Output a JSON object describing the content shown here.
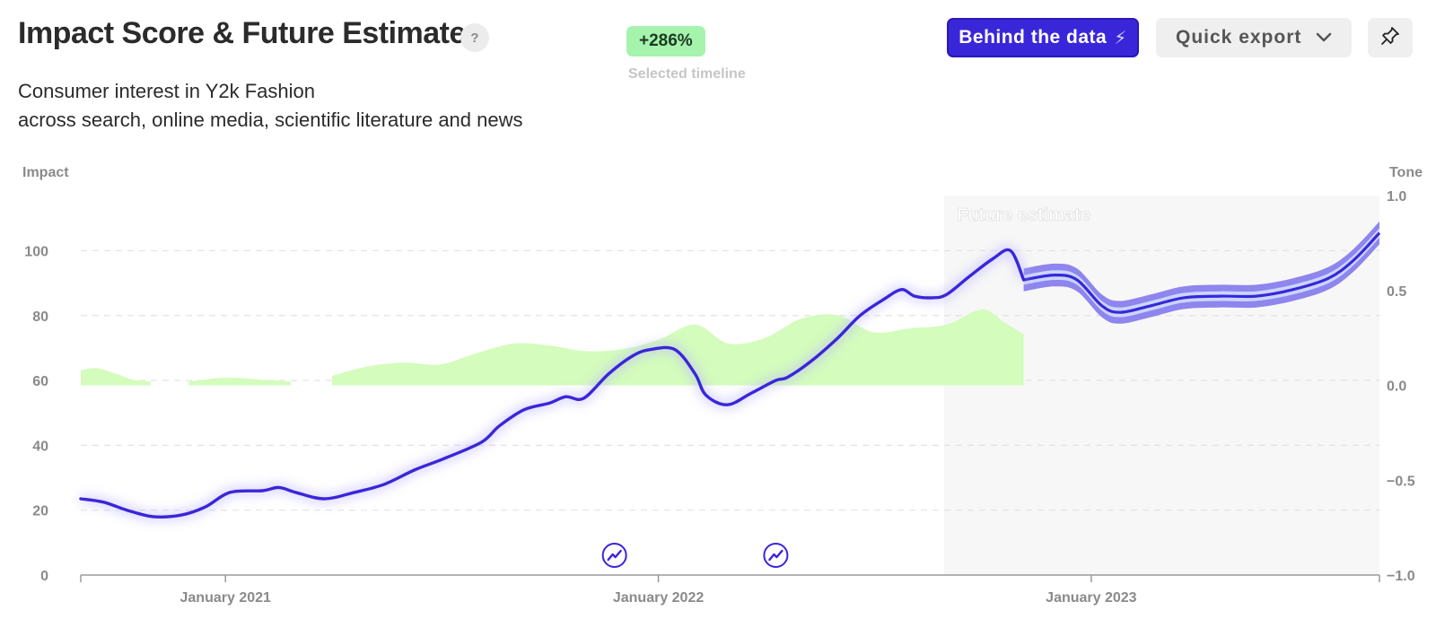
{
  "header": {
    "title": "Impact Score & Future Estimate",
    "help_label": "?",
    "growth_badge": "+286%",
    "growth_caption": "Selected timeline",
    "subtitle_line1": "Consumer interest in Y2k Fashion",
    "subtitle_line2": "across search, online media, scientific literature and news",
    "behind_data_label": "Behind the data",
    "quick_export_label": "Quick export"
  },
  "icons": {
    "help": "question-icon",
    "bolt": "lightning-icon",
    "dropdown": "chevron-down-icon",
    "pin": "pin-icon",
    "event_marker": "trend-up-icon"
  },
  "colors": {
    "impact_line": "#3a26d9",
    "forecast_band_outer": "#8e85ee",
    "forecast_band_inner": "#c9d6ff",
    "tone_area": "#d4fcbc",
    "forecast_region": "#f7f7f7",
    "badge": "#a5f3ad"
  },
  "chart_data": {
    "type": "line",
    "left_axis_label": "Impact",
    "right_axis_label": "Tone",
    "forecast_label": "Future estimate",
    "x_ticks": [
      {
        "date": "2021-01-01",
        "label": "January 2021"
      },
      {
        "date": "2022-01-01",
        "label": "January 2022"
      },
      {
        "date": "2023-01-01",
        "label": "January 2023"
      }
    ],
    "x_range": [
      "2020-09-01",
      "2023-09-01"
    ],
    "y_left_range": [
      0,
      117
    ],
    "y_left_ticks": [
      0,
      20,
      40,
      60,
      80,
      100
    ],
    "y_right_range": [
      -1.0,
      1.0
    ],
    "y_right_ticks": [
      {
        "value": 1.0,
        "label": "1.0"
      },
      {
        "value": 0.5,
        "label": "0.5"
      },
      {
        "value": 0.0,
        "label": "0.0"
      },
      {
        "value": -0.5,
        "label": "−0.5"
      },
      {
        "value": -1.0,
        "label": "−1.0"
      }
    ],
    "grid": "dashed horizontal",
    "forecast_start": "2022-08-30",
    "series": [
      {
        "name": "Impact",
        "axis": "left",
        "points": [
          [
            "2020-09-01",
            23.5
          ],
          [
            "2020-09-20",
            22.5
          ],
          [
            "2020-10-10",
            20
          ],
          [
            "2020-11-01",
            18
          ],
          [
            "2020-11-25",
            18.5
          ],
          [
            "2020-12-15",
            21
          ],
          [
            "2021-01-05",
            25.5
          ],
          [
            "2021-02-01",
            26
          ],
          [
            "2021-02-15",
            27
          ],
          [
            "2021-03-01",
            25.5
          ],
          [
            "2021-03-25",
            23.5
          ],
          [
            "2021-04-20",
            25.5
          ],
          [
            "2021-05-15",
            28
          ],
          [
            "2021-06-10",
            32.5
          ],
          [
            "2021-07-05",
            36
          ],
          [
            "2021-08-05",
            41
          ],
          [
            "2021-08-20",
            46
          ],
          [
            "2021-09-10",
            51
          ],
          [
            "2021-10-01",
            53
          ],
          [
            "2021-10-15",
            55
          ],
          [
            "2021-10-30",
            54.5
          ],
          [
            "2021-11-20",
            62
          ],
          [
            "2021-12-10",
            67.5
          ],
          [
            "2021-12-25",
            69.5
          ],
          [
            "2022-01-15",
            69.5
          ],
          [
            "2022-02-01",
            62
          ],
          [
            "2022-02-10",
            55.5
          ],
          [
            "2022-02-28",
            52.5
          ],
          [
            "2022-03-20",
            56
          ],
          [
            "2022-04-10",
            60
          ],
          [
            "2022-04-20",
            61
          ],
          [
            "2022-05-10",
            66
          ],
          [
            "2022-06-01",
            73
          ],
          [
            "2022-06-20",
            80
          ],
          [
            "2022-07-10",
            85
          ],
          [
            "2022-07-25",
            88
          ],
          [
            "2022-08-05",
            86
          ],
          [
            "2022-08-20",
            85.5
          ],
          [
            "2022-09-01",
            86.5
          ],
          [
            "2022-09-20",
            92
          ],
          [
            "2022-10-10",
            97.5
          ],
          [
            "2022-10-25",
            100
          ],
          [
            "2022-11-05",
            91
          ]
        ]
      },
      {
        "name": "Future estimate",
        "axis": "left",
        "points": [
          [
            "2022-11-05",
            91
          ],
          [
            "2022-12-01",
            92.5
          ],
          [
            "2022-12-20",
            91
          ],
          [
            "2023-01-10",
            83
          ],
          [
            "2023-01-25",
            81
          ],
          [
            "2023-02-20",
            83
          ],
          [
            "2023-03-20",
            85.5
          ],
          [
            "2023-04-20",
            86
          ],
          [
            "2023-05-20",
            86
          ],
          [
            "2023-06-20",
            88
          ],
          [
            "2023-07-20",
            91.5
          ],
          [
            "2023-08-10",
            97
          ],
          [
            "2023-09-01",
            105.5
          ]
        ],
        "band_outer": 3.5,
        "band_inner": 1.5
      },
      {
        "name": "Tone",
        "axis": "right",
        "segments": [
          [
            [
              "2020-09-01",
              0.08
            ],
            [
              "2020-09-15",
              0.09
            ],
            [
              "2020-10-01",
              0.06
            ],
            [
              "2020-10-15",
              0.03
            ],
            [
              "2020-10-30",
              0.02
            ]
          ],
          [
            [
              "2020-12-01",
              0.02
            ],
            [
              "2021-01-01",
              0.04
            ],
            [
              "2021-02-01",
              0.03
            ],
            [
              "2021-02-25",
              0.02
            ]
          ],
          [
            [
              "2021-04-01",
              0.05
            ],
            [
              "2021-05-01",
              0.1
            ],
            [
              "2021-06-01",
              0.12
            ],
            [
              "2021-07-01",
              0.11
            ],
            [
              "2021-08-01",
              0.17
            ],
            [
              "2021-09-01",
              0.22
            ],
            [
              "2021-10-01",
              0.21
            ],
            [
              "2021-11-01",
              0.18
            ],
            [
              "2021-12-01",
              0.19
            ],
            [
              "2022-01-01",
              0.24
            ],
            [
              "2022-02-01",
              0.32
            ],
            [
              "2022-03-01",
              0.22
            ],
            [
              "2022-04-01",
              0.25
            ],
            [
              "2022-05-01",
              0.35
            ],
            [
              "2022-06-01",
              0.37
            ],
            [
              "2022-07-01",
              0.28
            ],
            [
              "2022-08-01",
              0.3
            ],
            [
              "2022-09-01",
              0.32
            ],
            [
              "2022-10-01",
              0.4
            ],
            [
              "2022-10-20",
              0.33
            ],
            [
              "2022-11-05",
              0.27
            ]
          ]
        ]
      }
    ],
    "event_markers": [
      "2021-11-25",
      "2022-04-10"
    ]
  }
}
